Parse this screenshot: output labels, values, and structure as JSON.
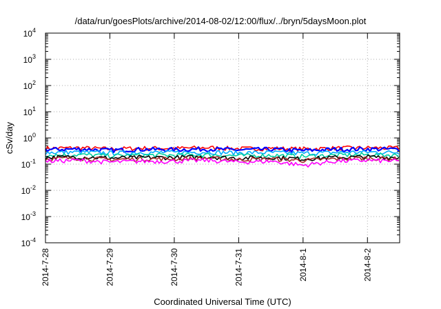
{
  "chart_data": {
    "type": "line",
    "title": "/data/run/goesPlots/archive/2014-08-02/12:00/flux/../bryn/5daysMoon.plot",
    "xlabel": "Coordinated Universal Time (UTC)",
    "ylabel": "cSv/day",
    "y_scale": "log",
    "ylim": [
      0.0001,
      10000
    ],
    "y_ticks": [
      {
        "base": "10",
        "exp": "-4",
        "value": 0.0001
      },
      {
        "base": "10",
        "exp": "-3",
        "value": 0.001
      },
      {
        "base": "10",
        "exp": "-2",
        "value": 0.01
      },
      {
        "base": "10",
        "exp": "-1",
        "value": 0.1
      },
      {
        "base": "10",
        "exp": "0",
        "value": 1
      },
      {
        "base": "10",
        "exp": "1",
        "value": 10
      },
      {
        "base": "10",
        "exp": "2",
        "value": 100
      },
      {
        "base": "10",
        "exp": "3",
        "value": 1000
      },
      {
        "base": "10",
        "exp": "4",
        "value": 10000
      }
    ],
    "x_ticks": [
      "2014-7-28",
      "2014-7-29",
      "2014-7-30",
      "2014-7-31",
      "2014-8-1",
      "2014-8-2"
    ],
    "xlim": [
      "2014-7-28",
      "2014-8-2 12:00"
    ],
    "grid": true,
    "x_sample_dates": [
      "2014-7-28",
      "2014-7-28 12:00",
      "2014-7-29",
      "2014-7-29 12:00",
      "2014-7-30",
      "2014-7-30 12:00",
      "2014-7-31",
      "2014-7-31 12:00",
      "2014-8-1",
      "2014-8-1 12:00",
      "2014-8-2",
      "2014-8-2 12:00"
    ],
    "series": [
      {
        "color": "#ff0000",
        "values": [
          0.4,
          0.42,
          0.38,
          0.41,
          0.4,
          0.43,
          0.39,
          0.4,
          0.38,
          0.41,
          0.42,
          0.41
        ]
      },
      {
        "color": "#0000ff",
        "values": [
          0.36,
          0.38,
          0.34,
          0.37,
          0.36,
          0.38,
          0.35,
          0.37,
          0.33,
          0.37,
          0.38,
          0.37
        ]
      },
      {
        "color": "#00aaff",
        "values": [
          0.28,
          0.29,
          0.27,
          0.28,
          0.28,
          0.29,
          0.27,
          0.28,
          0.26,
          0.28,
          0.29,
          0.28
        ]
      },
      {
        "color": "#00d0a0",
        "values": [
          0.22,
          0.23,
          0.21,
          0.22,
          0.22,
          0.23,
          0.21,
          0.22,
          0.2,
          0.22,
          0.23,
          0.22
        ]
      },
      {
        "color": "#000000",
        "values": [
          0.18,
          0.19,
          0.17,
          0.18,
          0.18,
          0.19,
          0.17,
          0.18,
          0.16,
          0.18,
          0.19,
          0.18
        ]
      },
      {
        "color": "#a52a2a",
        "values": [
          0.16,
          0.17,
          0.15,
          0.16,
          0.16,
          0.17,
          0.15,
          0.16,
          0.14,
          0.16,
          0.17,
          0.16
        ]
      },
      {
        "color": "#ff00ff",
        "values": [
          0.13,
          0.14,
          0.12,
          0.13,
          0.13,
          0.14,
          0.12,
          0.13,
          0.09,
          0.13,
          0.14,
          0.13
        ]
      }
    ]
  }
}
